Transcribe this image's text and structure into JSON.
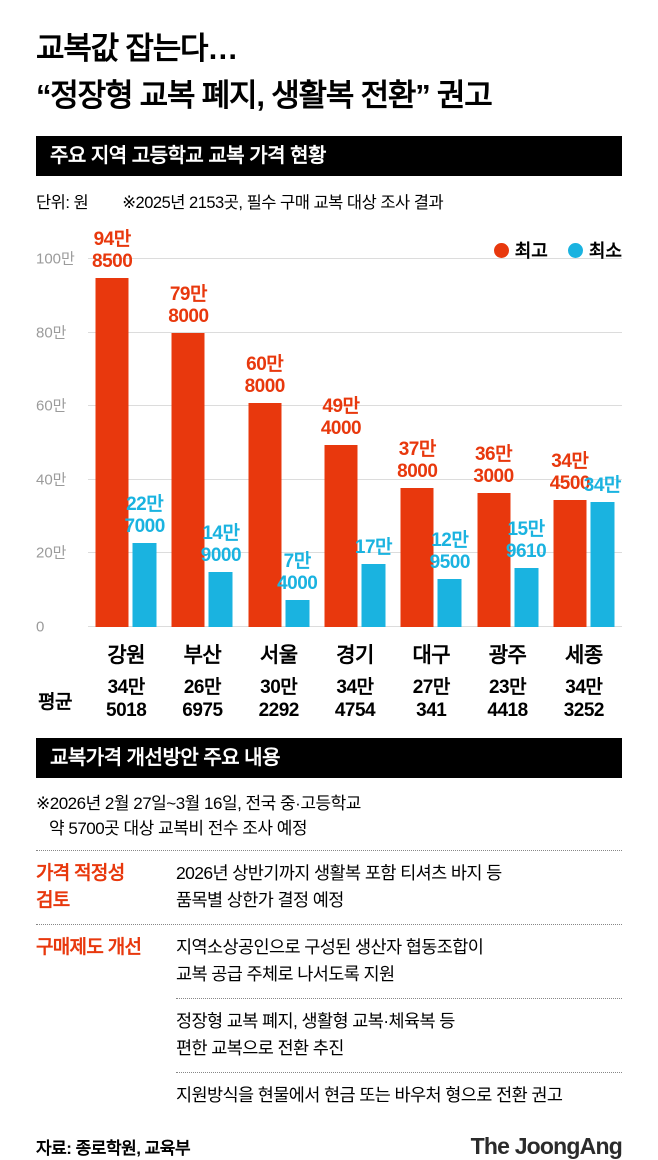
{
  "meta": {
    "background": "#ffffff",
    "max_color": "#e8380d",
    "min_color": "#1ab3e0"
  },
  "title": {
    "line1": "교복값 잡는다…",
    "line2": "“정장형 교복 폐지, 생활복 전환” 권고"
  },
  "section1": {
    "header": "주요 지역 고등학교 교복 가격 현황",
    "unit": "단위: 원",
    "note": "※2025년 2153곳, 필수 구매 교복 대상 조사 결과",
    "legend": [
      {
        "label": "최고",
        "color": "#e8380d"
      },
      {
        "label": "최소",
        "color": "#1ab3e0"
      }
    ]
  },
  "chart_data": {
    "type": "bar",
    "title": "주요 지역 고등학교 교복 가격 현황",
    "unit": "원",
    "grid": true,
    "legend_position": "top-right",
    "ylim": [
      0,
      1000000
    ],
    "yticks": [
      {
        "value": 1000000,
        "label": "100만"
      },
      {
        "value": 800000,
        "label": "80만"
      },
      {
        "value": 600000,
        "label": "60만"
      },
      {
        "value": 400000,
        "label": "40만"
      },
      {
        "value": 200000,
        "label": "20만"
      },
      {
        "value": 0,
        "label": "0"
      }
    ],
    "categories": [
      "강원",
      "부산",
      "서울",
      "경기",
      "대구",
      "광주",
      "세종"
    ],
    "series": [
      {
        "name": "최고",
        "color": "#e8380d",
        "values": [
          948500,
          798000,
          608000,
          494000,
          378000,
          363000,
          344500
        ],
        "labels": [
          [
            "94만",
            "8500"
          ],
          [
            "79만",
            "8000"
          ],
          [
            "60만",
            "8000"
          ],
          [
            "49만",
            "4000"
          ],
          [
            "37만",
            "8000"
          ],
          [
            "36만",
            "3000"
          ],
          [
            "34만",
            "4500"
          ]
        ]
      },
      {
        "name": "최소",
        "color": "#1ab3e0",
        "values": [
          227000,
          149000,
          74000,
          170000,
          129500,
          159610,
          340000
        ],
        "labels": [
          [
            "22만",
            "7000"
          ],
          [
            "14만",
            "9000"
          ],
          [
            "7만",
            "4000"
          ],
          [
            "17만"
          ],
          [
            "12만",
            "9500"
          ],
          [
            "15만",
            "9610"
          ],
          [
            "34만"
          ]
        ]
      }
    ],
    "average": {
      "label": "평균",
      "values": [
        [
          "34만",
          "5018"
        ],
        [
          "26만",
          "6975"
        ],
        [
          "30만",
          "2292"
        ],
        [
          "34만",
          "4754"
        ],
        [
          "27만",
          "341"
        ],
        [
          "23만",
          "4418"
        ],
        [
          "34만",
          "3252"
        ]
      ]
    }
  },
  "section2": {
    "header": "교복가격 개선방안 주요 내용",
    "note_lines": [
      "※2026년 2월 27일~3월 16일, 전국 중·고등학교",
      "약 5700곳 대상 교복비 전수 조사 예정"
    ],
    "rows": [
      {
        "divider": "full",
        "label_lines": [
          "가격 적정성",
          "검토"
        ],
        "text_lines": [
          "2026년 상반기까지 생활복 포함 티셔츠 바지 등",
          "품목별 상한가 결정 예정"
        ]
      },
      {
        "divider": "full",
        "label_lines": [
          "구매제도 개선"
        ],
        "text_lines": [
          "지역소상공인으로 구성된 생산자 협동조합이",
          "교복 공급 주체로 나서도록 지원"
        ]
      },
      {
        "divider": "text",
        "label_lines": [],
        "text_lines": [
          "정장형 교복 폐지, 생활형 교복·체육복 등",
          "편한 교복으로 전환 추진"
        ]
      },
      {
        "divider": "text",
        "label_lines": [],
        "text_lines": [
          "지원방식을 현물에서 현금 또는 바우처 형으로 전환 권고"
        ]
      }
    ]
  },
  "footer": {
    "source": "자료: 종로학원, 교육부",
    "logo": "The JoongAng"
  }
}
